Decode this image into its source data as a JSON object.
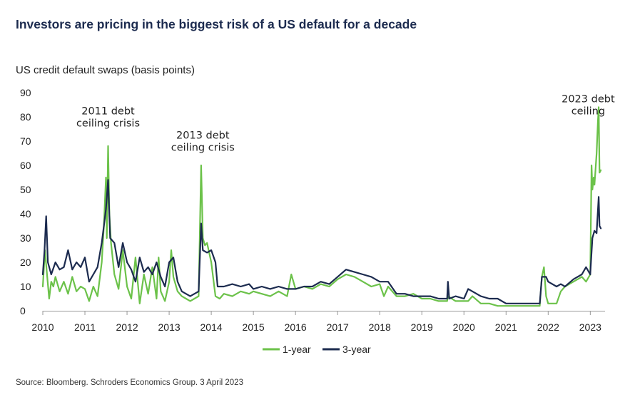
{
  "title": "Investors are pricing in the biggest risk of a US default for a decade",
  "subtitle": "US credit default swaps (basis points)",
  "source": "Source:  Bloomberg.  Schroders  Economics  Group.  3  April  2023",
  "colors": {
    "one_year": "#6cc24a",
    "three_year": "#1c2b4f",
    "axis": "#999999",
    "title": "#1c2b4f"
  },
  "chart_data": {
    "type": "line",
    "title": "Investors are pricing in the biggest risk of a US default for a decade",
    "ylabel": "US credit default swaps (basis points)",
    "xlabel": "",
    "xlim": [
      2010.0,
      2023.35
    ],
    "ylim": [
      0,
      90
    ],
    "yticks": [
      0,
      10,
      20,
      30,
      40,
      50,
      60,
      70,
      80,
      90
    ],
    "xticks": [
      2010,
      2011,
      2012,
      2013,
      2014,
      2015,
      2016,
      2017,
      2018,
      2019,
      2020,
      2021,
      2022,
      2023
    ],
    "grid": false,
    "legend_position": "bottom-center",
    "annotations": [
      {
        "lines": [
          "2011 debt",
          "ceiling crisis"
        ],
        "x": 2011.55,
        "y": 81
      },
      {
        "lines": [
          "2013 debt",
          "ceiling crisis"
        ],
        "x": 2013.8,
        "y": 71
      },
      {
        "lines": [
          "2023 debt",
          "ceiling"
        ],
        "x": 2022.95,
        "y": 86
      }
    ],
    "series": [
      {
        "name": "1-year",
        "x": [
          2010.0,
          2010.05,
          2010.1,
          2010.15,
          2010.2,
          2010.25,
          2010.3,
          2010.4,
          2010.5,
          2010.6,
          2010.7,
          2010.8,
          2010.9,
          2011.0,
          2011.1,
          2011.2,
          2011.3,
          2011.4,
          2011.45,
          2011.5,
          2011.52,
          2011.55,
          2011.58,
          2011.62,
          2011.7,
          2011.8,
          2011.9,
          2012.0,
          2012.1,
          2012.2,
          2012.3,
          2012.4,
          2012.5,
          2012.6,
          2012.7,
          2012.75,
          2012.8,
          2012.9,
          2013.0,
          2013.05,
          2013.1,
          2013.2,
          2013.3,
          2013.4,
          2013.5,
          2013.6,
          2013.7,
          2013.76,
          2013.8,
          2013.85,
          2013.9,
          2014.0,
          2014.1,
          2014.2,
          2014.3,
          2014.5,
          2014.7,
          2014.9,
          2015.0,
          2015.2,
          2015.4,
          2015.6,
          2015.8,
          2015.9,
          2016.0,
          2016.2,
          2016.4,
          2016.6,
          2016.8,
          2017.0,
          2017.2,
          2017.4,
          2017.6,
          2017.8,
          2018.0,
          2018.1,
          2018.2,
          2018.4,
          2018.6,
          2018.8,
          2019.0,
          2019.2,
          2019.4,
          2019.6,
          2019.62,
          2019.8,
          2020.0,
          2020.1,
          2020.2,
          2020.4,
          2020.6,
          2020.8,
          2021.0,
          2021.2,
          2021.4,
          2021.6,
          2021.8,
          2021.85,
          2021.9,
          2021.95,
          2022.0,
          2022.2,
          2022.3,
          2022.4,
          2022.6,
          2022.8,
          2022.9,
          2023.0,
          2023.03,
          2023.05,
          2023.08,
          2023.1,
          2023.12,
          2023.15,
          2023.18,
          2023.2,
          2023.22,
          2023.25
        ],
        "values": [
          10,
          25,
          15,
          5,
          12,
          10,
          14,
          8,
          12,
          7,
          14,
          8,
          10,
          9,
          4,
          10,
          6,
          20,
          35,
          55,
          30,
          68,
          40,
          28,
          15,
          9,
          25,
          10,
          5,
          22,
          3,
          15,
          7,
          18,
          5,
          22,
          8,
          4,
          12,
          25,
          14,
          8,
          6,
          5,
          4,
          5,
          6,
          60,
          30,
          27,
          28,
          20,
          6,
          5,
          7,
          6,
          8,
          7,
          8,
          7,
          6,
          8,
          6,
          15,
          9,
          10,
          9,
          11,
          10,
          13,
          15,
          14,
          12,
          10,
          11,
          6,
          10,
          6,
          6,
          7,
          5,
          5,
          4,
          4,
          6,
          4,
          4,
          4,
          6,
          3,
          3,
          2,
          2,
          2,
          2,
          2,
          2,
          14,
          18,
          6,
          3,
          3,
          8,
          10,
          12,
          14,
          12,
          15,
          60,
          50,
          55,
          52,
          57,
          65,
          78,
          84,
          57,
          58
        ]
      },
      {
        "name": "3-year",
        "x": [
          2010.0,
          2010.04,
          2010.08,
          2010.12,
          2010.2,
          2010.3,
          2010.4,
          2010.5,
          2010.6,
          2010.7,
          2010.8,
          2010.9,
          2011.0,
          2011.1,
          2011.2,
          2011.3,
          2011.4,
          2011.45,
          2011.5,
          2011.55,
          2011.6,
          2011.7,
          2011.8,
          2011.9,
          2012.0,
          2012.1,
          2012.2,
          2012.3,
          2012.4,
          2012.5,
          2012.6,
          2012.7,
          2012.8,
          2012.9,
          2013.0,
          2013.1,
          2013.2,
          2013.3,
          2013.4,
          2013.5,
          2013.6,
          2013.7,
          2013.76,
          2013.8,
          2013.9,
          2014.0,
          2014.1,
          2014.15,
          2014.3,
          2014.5,
          2014.7,
          2014.9,
          2015.0,
          2015.2,
          2015.4,
          2015.6,
          2015.8,
          2016.0,
          2016.2,
          2016.4,
          2016.6,
          2016.8,
          2017.0,
          2017.2,
          2017.4,
          2017.6,
          2017.8,
          2018.0,
          2018.2,
          2018.4,
          2018.6,
          2018.8,
          2019.0,
          2019.2,
          2019.4,
          2019.6,
          2019.62,
          2019.65,
          2019.8,
          2020.0,
          2020.1,
          2020.2,
          2020.4,
          2020.6,
          2020.8,
          2021.0,
          2021.2,
          2021.4,
          2021.6,
          2021.8,
          2021.85,
          2021.95,
          2022.0,
          2022.2,
          2022.3,
          2022.4,
          2022.6,
          2022.8,
          2022.9,
          2023.0,
          2023.05,
          2023.1,
          2023.15,
          2023.2,
          2023.22,
          2023.25
        ],
        "values": [
          15,
          25,
          39,
          20,
          15,
          20,
          17,
          18,
          25,
          17,
          20,
          18,
          22,
          12,
          15,
          18,
          28,
          35,
          42,
          54,
          30,
          28,
          18,
          28,
          20,
          17,
          12,
          22,
          16,
          18,
          15,
          20,
          14,
          10,
          20,
          22,
          12,
          8,
          7,
          6,
          7,
          8,
          36,
          25,
          24,
          25,
          20,
          10,
          10,
          11,
          10,
          11,
          9,
          10,
          9,
          10,
          9,
          9,
          10,
          10,
          12,
          11,
          14,
          17,
          16,
          15,
          14,
          12,
          12,
          7,
          7,
          6,
          6,
          6,
          5,
          5,
          12,
          5,
          6,
          5,
          9,
          8,
          6,
          5,
          5,
          3,
          3,
          3,
          3,
          3,
          14,
          14,
          12,
          10,
          11,
          10,
          13,
          15,
          18,
          15,
          30,
          33,
          32,
          47,
          35,
          34
        ]
      }
    ]
  }
}
